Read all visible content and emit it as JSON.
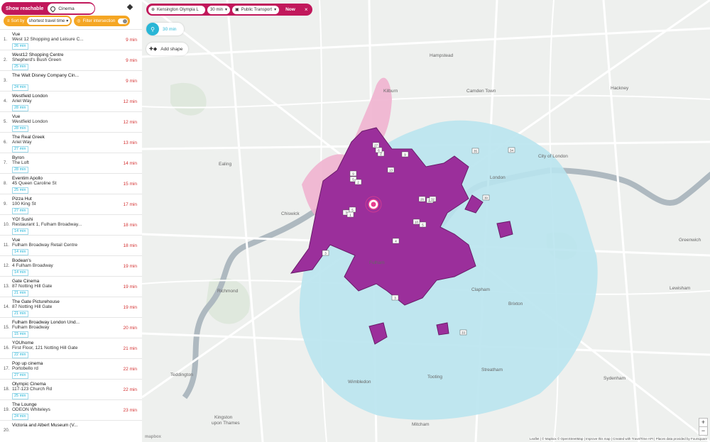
{
  "sidebar": {
    "show_reachable_label": "Show reachable",
    "search_value": "Cinema",
    "sort_label": "Sort by",
    "sort_value": "shortest travel time",
    "filter_label": "Filter intersection",
    "results": [
      {
        "num": "1.",
        "name": "Vue",
        "addr": "West 12 Shopping and Leisure C...",
        "badge": "26 min",
        "time": "9 min"
      },
      {
        "num": "2.",
        "name": "West12 Shopping Centre",
        "addr": "Shepherd's Bush Green",
        "badge": "25 min",
        "time": "9 min"
      },
      {
        "num": "3.",
        "name": "The Walt Disney Company Cin...",
        "addr": "",
        "badge": "24 min",
        "time": "9 min"
      },
      {
        "num": "4.",
        "name": "Westfield London",
        "addr": "Ariel Way",
        "badge": "28 min",
        "time": "12 min"
      },
      {
        "num": "5.",
        "name": "Vue",
        "addr": "Westfield London",
        "badge": "28 min",
        "time": "12 min"
      },
      {
        "num": "6.",
        "name": "The Real Greek",
        "addr": "Ariel Way",
        "badge": "27 min",
        "time": "13 min"
      },
      {
        "num": "7.",
        "name": "Byron",
        "addr": "The Loft",
        "badge": "28 min",
        "time": "14 min"
      },
      {
        "num": "8.",
        "name": "Eventim Apollo",
        "addr": "45 Queen Caroline St",
        "badge": "25 min",
        "time": "15 min"
      },
      {
        "num": "9.",
        "name": "Pizza Hut",
        "addr": "100 King St",
        "badge": "27 min",
        "time": "17 min"
      },
      {
        "num": "10.",
        "name": "YO! Sushi",
        "addr": "Restaurant 1, Fulham Broadway...",
        "badge": "14 min",
        "time": "18 min"
      },
      {
        "num": "11.",
        "name": "Vue",
        "addr": "Fulham Broadway Retail Centre",
        "badge": "14 min",
        "time": "18 min"
      },
      {
        "num": "12.",
        "name": "Bodean's",
        "addr": "4 Fulham Broadway",
        "badge": "14 min",
        "time": "19 min"
      },
      {
        "num": "13.",
        "name": "Gate Cinema",
        "addr": "87 Notting Hill Gate",
        "badge": "21 min",
        "time": "19 min"
      },
      {
        "num": "14.",
        "name": "The Gate Picturehouse",
        "addr": "87 Notting Hill Gate",
        "badge": "21 min",
        "time": "19 min"
      },
      {
        "num": "15.",
        "name": "Fulham Broadway London Und...",
        "addr": "Fulham Broadway",
        "badge": "15 min",
        "time": "20 min"
      },
      {
        "num": "16.",
        "name": "YOUhome",
        "addr": "First Floor, 121 Notting Hill Gate",
        "badge": "22 min",
        "time": "21 min"
      },
      {
        "num": "17.",
        "name": "Pop up cinema",
        "addr": "Portobello rd",
        "badge": "27 min",
        "time": "22 min"
      },
      {
        "num": "18.",
        "name": "Olympic Cinema",
        "addr": "117-123 Church Rd",
        "badge": "25 min",
        "time": "22 min"
      },
      {
        "num": "19.",
        "name": "The Lounge",
        "addr": "ODEON Whiteleys",
        "badge": "24 min",
        "time": "23 min"
      },
      {
        "num": "20.",
        "name": "Victoria and Albert Museum (V...",
        "addr": "",
        "badge": "",
        "time": ""
      }
    ]
  },
  "map": {
    "origin_value": "Kensington Olympia L",
    "time_value": "30 min",
    "mode_value": "Public Transport",
    "now_label": "Now",
    "close_label": "×",
    "bike_label": "30 min",
    "add_shape_label": "Add shape",
    "zoom_in": "+",
    "zoom_out": "−",
    "attribution": "Leaflet | © Mapbox © OpenStreetMap | Improve this map | Created with TravelTime API | Places data provided by Foursquare",
    "logo": "mapbox",
    "labels": {
      "kilburn": "Kilburn",
      "camden": "Camden Town",
      "hackney": "Hackney",
      "hampstead": "Hampstead",
      "ealing": "Ealing",
      "city": "City of London",
      "london": "London",
      "chiswick": "Chiswick",
      "fulham": "Fulham",
      "clapham": "Clapham",
      "brixton": "Brixton",
      "richmond": "Richmond",
      "wimbledon": "Wimbledon",
      "tooting": "Tooting",
      "streatham": "Streatham",
      "teddington": "Teddington",
      "kingston": "Kingston",
      "kingston2": "upon Thames",
      "lewisham": "Lewisham",
      "greenwich": "Greenwich",
      "sydenham": "Sydenham",
      "mitcham": "Mitcham"
    },
    "markers": [
      "13",
      "9",
      "5",
      "2",
      "2",
      "6",
      "27",
      "9",
      "26",
      "20",
      "30",
      "7",
      "5",
      "1",
      "10",
      "5",
      "35",
      "4",
      "3",
      "3",
      "33",
      "34",
      "32"
    ],
    "colors": {
      "accent": "#c1185b",
      "orange": "#f5a623",
      "purple": "#9b2f9b",
      "blue": "#b9e4ee",
      "pink": "#efb3cf",
      "bike": "#29b6d6"
    }
  }
}
